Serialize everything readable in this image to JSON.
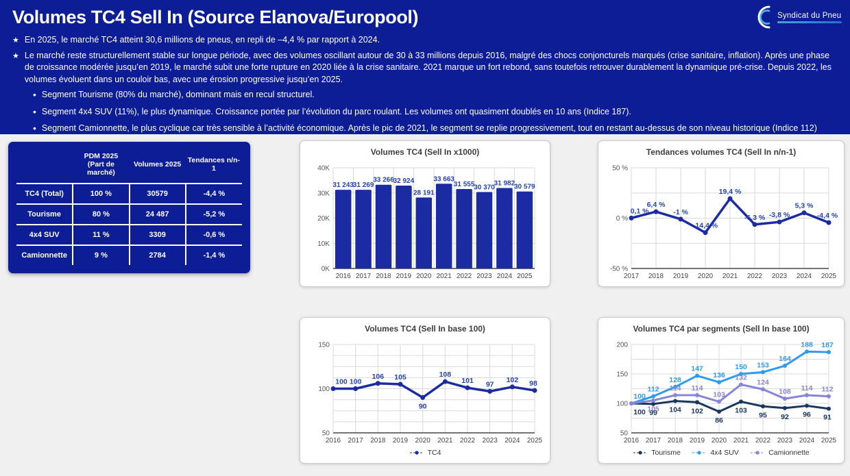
{
  "colors": {
    "page_bg": "#f0f0f0",
    "header_bg": "#0c1d96",
    "panel_bg": "#0c1d96",
    "primary_series": "#1b2ca3",
    "tourisme_series": "#17375e",
    "suv_series": "#2e9af0",
    "camionnette_series": "#8884d8"
  },
  "header": {
    "title": "Volumes TC4 Sell In (Source Elanova/Europool)",
    "logo": {
      "name": "Syndicat du Pneu"
    },
    "bullets": [
      {
        "marker": "★",
        "text": "En 2025, le marché TC4 atteint 30,6 millions de pneus, en repli de –4,4 % par rapport à 2024."
      },
      {
        "marker": "★",
        "text": "Le marché reste structurellement stable sur longue période, avec des volumes oscillant autour de 30 à 33 millions depuis 2016, malgré des chocs conjoncturels marqués (crise sanitaire, inflation). Après une phase de croissance modérée jusqu’en 2019, le marché subit une forte rupture en 2020 liée à la crise sanitaire. 2021 marque un fort rebond, sans toutefois retrouver durablement la dynamique pré-crise. Depuis 2022, les volumes évoluent dans un couloir bas, avec une érosion progressive jusqu’en 2025."
      },
      {
        "marker": "•",
        "text": "Segment Tourisme (80% du marché), dominant mais en recul structurel."
      },
      {
        "marker": "•",
        "text": "Segment 4x4 SUV (11%), le plus dynamique. Croissance portée par l’évolution du parc roulant. Les volumes ont quasiment doublés en 10 ans (Indice 187)."
      },
      {
        "marker": "•",
        "text": "Segment Camionnette, le plus cyclique car très sensible à l’activité économique. Après le pic de 2021, le segment se replie progressivement, tout en restant au-dessus de son niveau historique (Indice 112)"
      }
    ]
  },
  "table": {
    "columns": [
      "",
      "PDM 2025\n(Part de marché)",
      "Volumes 2025",
      "Tendances n/n-1"
    ],
    "rows": [
      {
        "label": "TC4 (Total)",
        "pdm": "100 %",
        "volume": "30579",
        "tendance": "-4,4 %"
      },
      {
        "label": "Tourisme",
        "pdm": "80 %",
        "volume": "24 487",
        "tendance": "-5,2 %"
      },
      {
        "label": "4x4 SUV",
        "pdm": "11 %",
        "volume": "3309",
        "tendance": "-0,6 %"
      },
      {
        "label": "Camionnette",
        "pdm": "9 %",
        "volume": "2784",
        "tendance": "-1,4 %"
      }
    ]
  },
  "chart_data": [
    {
      "id": "volumes",
      "type": "bar",
      "title": "Volumes TC4 (Sell In x1000)",
      "categories": [
        "2016",
        "2017",
        "2018",
        "2019",
        "2020",
        "2021",
        "2022",
        "2023",
        "2024",
        "2025"
      ],
      "values": [
        31243,
        31269,
        33266,
        32924,
        28191,
        33663,
        31555,
        30370,
        31982,
        30579
      ],
      "labels": [
        "31 243",
        "31 269",
        "33 266",
        "32 924",
        "28 191",
        "33 663",
        "31 555",
        "30 370",
        "31 982",
        "30 579"
      ],
      "color": "#1b2ca3",
      "label_color": "#2443b5",
      "ylim": [
        0,
        40000
      ],
      "ygrid_step": 10000,
      "yticks": [
        {
          "v": 0,
          "label": "0K"
        },
        {
          "v": 10000,
          "label": "10K"
        },
        {
          "v": 20000,
          "label": "20K"
        },
        {
          "v": 30000,
          "label": "30K"
        },
        {
          "v": 40000,
          "label": "40K"
        }
      ],
      "legend": false
    },
    {
      "id": "tendances",
      "type": "line",
      "title": "Tendances volumes TC4 (Sell In n/n-1)",
      "categories": [
        "2017",
        "2018",
        "2019",
        "2020",
        "2021",
        "2022",
        "2023",
        "2024",
        "2025"
      ],
      "series": [
        {
          "name": "TC4",
          "color": "#1b2ca3",
          "label_color": "#2443b5",
          "values": [
            0.1,
            6.4,
            -1,
            -14.4,
            19.4,
            -6.3,
            -3.8,
            5.3,
            -4.4
          ],
          "labels": [
            "0,1 %",
            "6,4 %",
            "-1 %",
            "-14,4 %",
            "19,4 %",
            "-6,3 %",
            "-3,8 %",
            "5,3 %",
            "-4,4 %"
          ]
        }
      ],
      "ylim": [
        -50,
        50
      ],
      "ygrid_step": 25,
      "yticks": [
        {
          "v": 50,
          "label": "50 %"
        },
        {
          "v": 0,
          "label": "0 %"
        },
        {
          "v": -50,
          "label": "-50 %"
        }
      ],
      "legend": false
    },
    {
      "id": "base100",
      "type": "line",
      "title": "Volumes TC4 (Sell In base 100)",
      "categories": [
        "2016",
        "2017",
        "2018",
        "2019",
        "2020",
        "2021",
        "2022",
        "2023",
        "2024",
        "2025"
      ],
      "series": [
        {
          "name": "TC4",
          "color": "#1b2ca3",
          "label_color": "#2443b5",
          "values": [
            100,
            100,
            106,
            105,
            90,
            108,
            101,
            97,
            102,
            98
          ],
          "labels": [
            "100",
            "100",
            "106",
            "105",
            "90",
            "108",
            "101",
            "97",
            "102",
            "98"
          ]
        }
      ],
      "ylim": [
        50,
        150
      ],
      "ygrid_step": 12.5,
      "yticks": [
        {
          "v": 150,
          "label": "150"
        },
        {
          "v": 100,
          "label": "100"
        },
        {
          "v": 50,
          "label": "50"
        }
      ],
      "legend": true
    },
    {
      "id": "segments",
      "type": "line",
      "title": "Volumes TC4 par segments (Sell In base 100)",
      "categories": [
        "2016",
        "2017",
        "2018",
        "2019",
        "2020",
        "2021",
        "2022",
        "2023",
        "2024",
        "2025"
      ],
      "series": [
        {
          "name": "Tourisme",
          "color": "#17375e",
          "values": [
            100,
            99,
            104,
            102,
            86,
            103,
            95,
            92,
            96,
            91
          ],
          "labels": [
            "100",
            "99",
            "104",
            "102",
            "86",
            "103",
            "95",
            "92",
            "96",
            "91"
          ]
        },
        {
          "name": "4x4 SUV",
          "color": "#2e9af0",
          "values": [
            100,
            112,
            128,
            147,
            136,
            150,
            153,
            164,
            188,
            187
          ],
          "labels": [
            "100",
            "112",
            "128",
            "147",
            "136",
            "150",
            "153",
            "164",
            "188",
            "187"
          ]
        },
        {
          "name": "Camionnette",
          "color": "#8884d8",
          "values": [
            100,
            105,
            114,
            114,
            103,
            132,
            124,
            108,
            114,
            112
          ],
          "labels": [
            "100",
            "105",
            "114",
            "114",
            "103",
            "132",
            "124",
            "108",
            "114",
            "112"
          ]
        }
      ],
      "ylim": [
        50,
        200
      ],
      "ygrid_step": 25,
      "yticks": [
        {
          "v": 200,
          "label": "200"
        },
        {
          "v": 150,
          "label": "150"
        },
        {
          "v": 100,
          "label": "100"
        },
        {
          "v": 50,
          "label": "50"
        }
      ],
      "legend": true
    }
  ]
}
